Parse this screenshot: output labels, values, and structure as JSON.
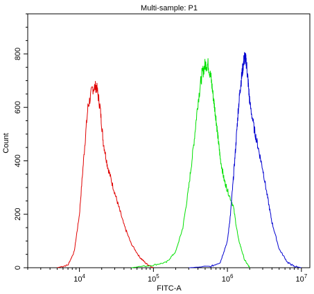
{
  "chart_data": {
    "type": "line",
    "title": "Multi-sample: P1",
    "xlabel": "FITC-A",
    "ylabel": "Count",
    "x_scale": "log",
    "xlim": [
      2000,
      13000000
    ],
    "ylim": [
      0,
      950
    ],
    "x_ticks": [
      {
        "value": 10000,
        "base": "10",
        "exp": "4"
      },
      {
        "value": 100000,
        "base": "10",
        "exp": "5"
      },
      {
        "value": 1000000,
        "base": "10",
        "exp": "6"
      },
      {
        "value": 10000000,
        "base": "10",
        "exp": "7"
      }
    ],
    "y_ticks": [
      {
        "value": 0,
        "label": "0"
      },
      {
        "value": 200,
        "label": "200"
      },
      {
        "value": 400,
        "label": "400"
      },
      {
        "value": 600,
        "label": "600"
      },
      {
        "value": 800,
        "label": "800"
      }
    ],
    "grid": false,
    "legend": "none",
    "series": [
      {
        "color": "#e00000",
        "x": [
          5000,
          7000,
          8500,
          10000,
          11500,
          13000,
          15000,
          17000,
          19000,
          21000,
          24000,
          28000,
          33000,
          40000,
          50000,
          65000,
          80000,
          100000
        ],
        "y": [
          0,
          10,
          60,
          200,
          420,
          600,
          670,
          680,
          600,
          470,
          380,
          310,
          240,
          160,
          90,
          40,
          15,
          0
        ]
      },
      {
        "color": "#00e000",
        "x": [
          50000,
          100000,
          150000,
          200000,
          250000,
          300000,
          350000,
          400000,
          450000,
          500000,
          550000,
          600000,
          650000,
          700000,
          750000,
          800000,
          900000,
          1000000,
          1200000,
          1400000,
          1700000,
          2000000
        ],
        "y": [
          0,
          10,
          20,
          60,
          150,
          300,
          460,
          620,
          720,
          760,
          760,
          710,
          630,
          560,
          480,
          410,
          330,
          290,
          230,
          110,
          30,
          0
        ]
      },
      {
        "color": "#0000d0",
        "x": [
          300000,
          600000,
          800000,
          1000000,
          1100000,
          1200000,
          1300000,
          1400000,
          1500000,
          1600000,
          1700000,
          1800000,
          1900000,
          2000000,
          2300000,
          2600000,
          3000000,
          3500000,
          4000000,
          5000000,
          6500000,
          8000000,
          10000000
        ],
        "y": [
          0,
          5,
          20,
          100,
          200,
          330,
          460,
          590,
          680,
          740,
          790,
          770,
          700,
          620,
          520,
          450,
          370,
          260,
          170,
          70,
          20,
          5,
          0
        ]
      }
    ]
  }
}
